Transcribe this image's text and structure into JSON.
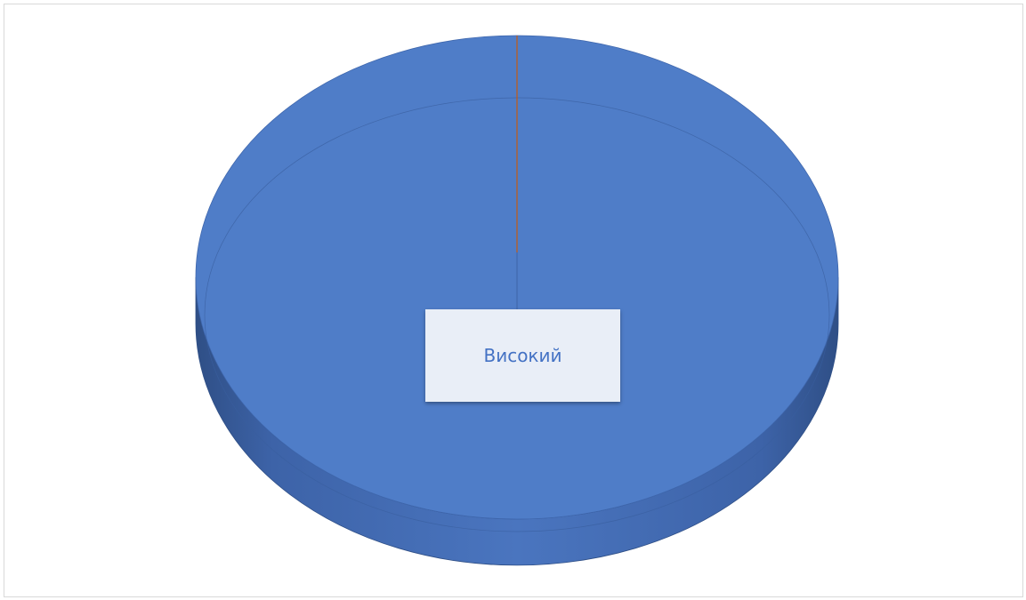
{
  "chart_data": {
    "type": "pie",
    "title": "",
    "style": "3d",
    "categories": [
      "Високий",
      ""
    ],
    "values": [
      100,
      0
    ],
    "colors": [
      "#4f7dc8",
      "#c55a11"
    ],
    "data_labels": [
      "Високий"
    ],
    "legend": "none"
  }
}
